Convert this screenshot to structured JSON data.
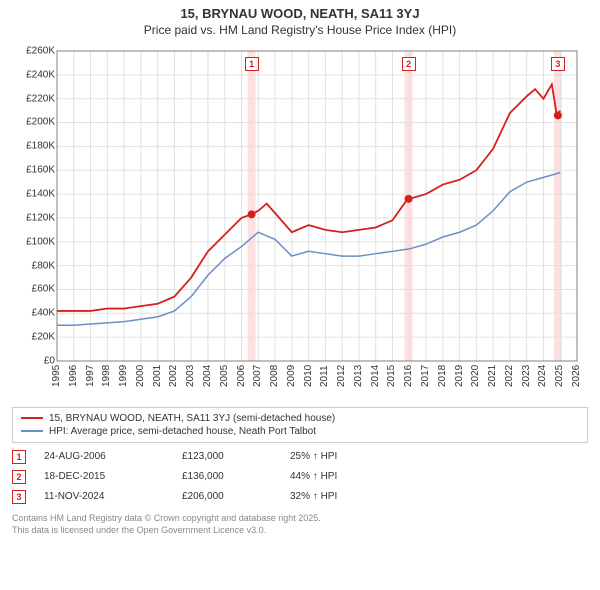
{
  "title_line1": "15, BRYNAU WOOD, NEATH, SA11 3YJ",
  "title_line2": "Price paid vs. HM Land Registry's House Price Index (HPI)",
  "chart": {
    "type": "line",
    "background_color": "#ffffff",
    "grid_color": "#e0e0e0",
    "plot_border_color": "#808080",
    "axis_text_color": "#333333",
    "x_years": [
      1995,
      1996,
      1997,
      1998,
      1999,
      2000,
      2001,
      2002,
      2003,
      2004,
      2005,
      2006,
      2007,
      2008,
      2009,
      2010,
      2011,
      2012,
      2013,
      2014,
      2015,
      2016,
      2017,
      2018,
      2019,
      2020,
      2021,
      2022,
      2023,
      2024,
      2025,
      2026
    ],
    "ylim": [
      0,
      260000
    ],
    "ytick_step": 20000,
    "ytick_labels": [
      "£0",
      "£20K",
      "£40K",
      "£60K",
      "£80K",
      "£100K",
      "£120K",
      "£140K",
      "£160K",
      "£180K",
      "£200K",
      "£220K",
      "£240K",
      "£260K"
    ],
    "series": [
      {
        "name": "property",
        "label": "15, BRYNAU WOOD, NEATH, SA11 3YJ (semi-detached house)",
        "color": "#d62020",
        "line_width": 1.8,
        "points": [
          [
            1995,
            42000
          ],
          [
            1996,
            42000
          ],
          [
            1997,
            42000
          ],
          [
            1998,
            44000
          ],
          [
            1999,
            44000
          ],
          [
            2000,
            46000
          ],
          [
            2001,
            48000
          ],
          [
            2002,
            54000
          ],
          [
            2003,
            70000
          ],
          [
            2004,
            92000
          ],
          [
            2005,
            106000
          ],
          [
            2006,
            120000
          ],
          [
            2006.6,
            123000
          ],
          [
            2007,
            126000
          ],
          [
            2007.5,
            132000
          ],
          [
            2008,
            124000
          ],
          [
            2009,
            108000
          ],
          [
            2010,
            114000
          ],
          [
            2011,
            110000
          ],
          [
            2012,
            108000
          ],
          [
            2013,
            110000
          ],
          [
            2014,
            112000
          ],
          [
            2015,
            118000
          ],
          [
            2015.9,
            136000
          ],
          [
            2016,
            136000
          ],
          [
            2017,
            140000
          ],
          [
            2018,
            148000
          ],
          [
            2019,
            152000
          ],
          [
            2020,
            160000
          ],
          [
            2021,
            178000
          ],
          [
            2022,
            208000
          ],
          [
            2023,
            222000
          ],
          [
            2023.5,
            228000
          ],
          [
            2024,
            220000
          ],
          [
            2024.5,
            232000
          ],
          [
            2024.8,
            206000
          ],
          [
            2025,
            210000
          ]
        ]
      },
      {
        "name": "hpi",
        "label": "HPI: Average price, semi-detached house, Neath Port Talbot",
        "color": "#6a8fc8",
        "line_width": 1.5,
        "points": [
          [
            1995,
            30000
          ],
          [
            1996,
            30000
          ],
          [
            1997,
            31000
          ],
          [
            1998,
            32000
          ],
          [
            1999,
            33000
          ],
          [
            2000,
            35000
          ],
          [
            2001,
            37000
          ],
          [
            2002,
            42000
          ],
          [
            2003,
            54000
          ],
          [
            2004,
            72000
          ],
          [
            2005,
            86000
          ],
          [
            2006,
            96000
          ],
          [
            2007,
            108000
          ],
          [
            2008,
            102000
          ],
          [
            2009,
            88000
          ],
          [
            2010,
            92000
          ],
          [
            2011,
            90000
          ],
          [
            2012,
            88000
          ],
          [
            2013,
            88000
          ],
          [
            2014,
            90000
          ],
          [
            2015,
            92000
          ],
          [
            2016,
            94000
          ],
          [
            2017,
            98000
          ],
          [
            2018,
            104000
          ],
          [
            2019,
            108000
          ],
          [
            2020,
            114000
          ],
          [
            2021,
            126000
          ],
          [
            2022,
            142000
          ],
          [
            2023,
            150000
          ],
          [
            2024,
            154000
          ],
          [
            2025,
            158000
          ]
        ]
      }
    ],
    "sale_markers": [
      {
        "n": "1",
        "year": 2006.6,
        "price": 123000,
        "band_color": "#ffe0e0",
        "border": "#d62020"
      },
      {
        "n": "2",
        "year": 2015.96,
        "price": 136000,
        "band_color": "#ffe0e0",
        "border": "#d62020"
      },
      {
        "n": "3",
        "year": 2024.86,
        "price": 206000,
        "band_color": "#ffe0e0",
        "border": "#d62020"
      }
    ],
    "marker_dot_radius": 4,
    "label_fontsize": 10,
    "title_fontsize": 13
  },
  "legend": {
    "items": [
      {
        "color": "#d62020",
        "text": "15, BRYNAU WOOD, NEATH, SA11 3YJ (semi-detached house)"
      },
      {
        "color": "#6a8fc8",
        "text": "HPI: Average price, semi-detached house, Neath Port Talbot"
      }
    ]
  },
  "sales": [
    {
      "n": "1",
      "date": "24-AUG-2006",
      "price": "£123,000",
      "hpi": "25% ↑ HPI",
      "border": "#d62020"
    },
    {
      "n": "2",
      "date": "18-DEC-2015",
      "price": "£136,000",
      "hpi": "44% ↑ HPI",
      "border": "#d62020"
    },
    {
      "n": "3",
      "date": "11-NOV-2024",
      "price": "£206,000",
      "hpi": "32% ↑ HPI",
      "border": "#d62020"
    }
  ],
  "footer_line1": "Contains HM Land Registry data © Crown copyright and database right 2025.",
  "footer_line2": "This data is licensed under the Open Government Licence v3.0."
}
